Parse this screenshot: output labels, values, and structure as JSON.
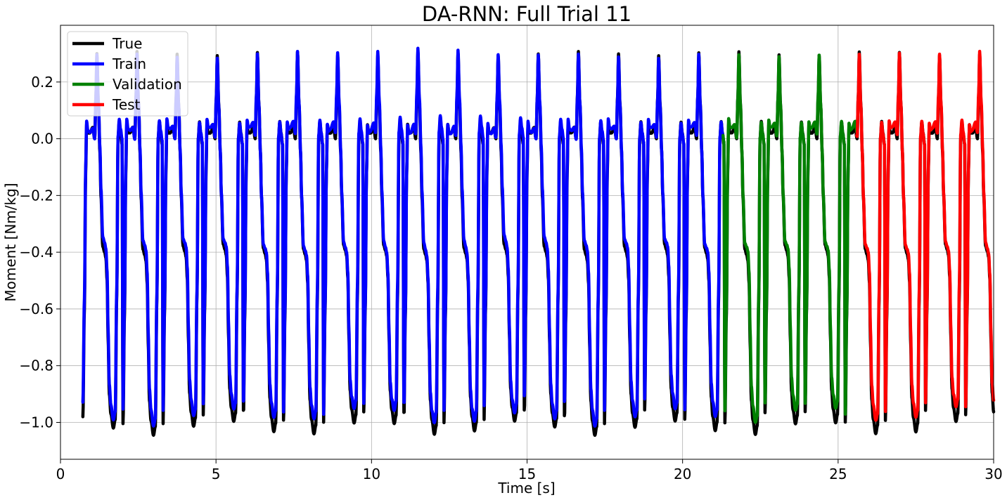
{
  "chart_data": {
    "type": "line",
    "title": "DA-RNN: Full Trial 11",
    "xlabel": "Time [s]",
    "ylabel": "Moment [Nm/kg]",
    "xlim": [
      0,
      30
    ],
    "ylim": [
      -1.13,
      0.4
    ],
    "xticks": [
      0,
      5,
      10,
      15,
      20,
      25,
      30
    ],
    "yticks": [
      -1.0,
      -0.8,
      -0.6,
      -0.4,
      -0.2,
      0.0,
      0.2
    ],
    "xtick_labels": [
      "0",
      "5",
      "10",
      "15",
      "20",
      "25",
      "30"
    ],
    "ytick_labels": [
      "−1.0",
      "−0.8",
      "−0.6",
      "−0.4",
      "−0.2",
      "0.0",
      "0.2"
    ],
    "grid": true,
    "legend_position": "top-left",
    "gait_cycle": {
      "period_s": 1.29,
      "first_start_s": 0.72,
      "t": [
        0,
        0.05,
        0.09,
        0.12,
        0.16,
        0.22,
        0.32,
        0.38,
        0.42,
        0.45,
        0.5,
        0.55,
        0.58,
        0.64,
        0.7,
        0.74,
        0.78,
        0.81,
        0.85,
        0.9,
        0.98,
        1.04,
        1.09,
        1.13,
        1.17,
        1.21,
        1.26,
        1.29
      ],
      "value": [
        -0.98,
        -0.6,
        -0.12,
        0.05,
        0.02,
        0.02,
        0.04,
        0.0,
        0.15,
        0.3,
        0.12,
        -0.05,
        -0.2,
        -0.38,
        -0.4,
        -0.42,
        -0.5,
        -0.7,
        -0.9,
        -0.97,
        -1.02,
        -0.99,
        -0.55,
        0.0,
        0.06,
        0.02,
        -0.02,
        -0.98
      ]
    },
    "series": [
      {
        "name": "True",
        "color": "#000000",
        "t_start": 0.72,
        "t_end": 30.0
      },
      {
        "name": "Train",
        "color": "#0000ff",
        "t_start": 0.72,
        "t_end": 21.3
      },
      {
        "name": "Validation",
        "color": "#008000",
        "t_start": 21.3,
        "t_end": 25.6
      },
      {
        "name": "Test",
        "color": "#ff0000",
        "t_start": 25.6,
        "t_end": 30.0
      }
    ]
  }
}
